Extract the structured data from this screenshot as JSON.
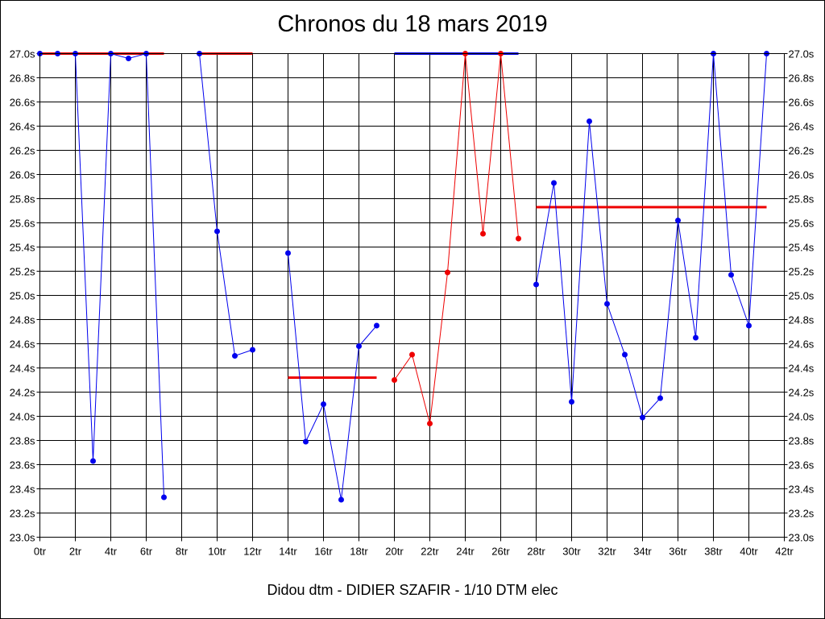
{
  "chart_data": {
    "type": "line",
    "title": "Chronos du 18 mars 2019",
    "footer": "Didou dtm - DIDIER SZAFIR - 1/10 DTM elec",
    "xlim": [
      0,
      42
    ],
    "ylim": [
      23.0,
      27.0
    ],
    "x_ticks": [
      "0tr",
      "2tr",
      "4tr",
      "6tr",
      "8tr",
      "10tr",
      "12tr",
      "14tr",
      "16tr",
      "18tr",
      "20tr",
      "22tr",
      "24tr",
      "26tr",
      "28tr",
      "30tr",
      "32tr",
      "34tr",
      "36tr",
      "38tr",
      "40tr",
      "42tr"
    ],
    "y_ticks": [
      "23.0s",
      "23.2s",
      "23.4s",
      "23.6s",
      "23.8s",
      "24.0s",
      "24.2s",
      "24.4s",
      "24.6s",
      "24.8s",
      "25.0s",
      "25.2s",
      "25.4s",
      "25.6s",
      "25.8s",
      "26.0s",
      "26.2s",
      "26.4s",
      "26.6s",
      "26.8s",
      "27.0s"
    ],
    "grid": true,
    "series": [
      {
        "color": "#0000ee",
        "x": [
          0,
          1,
          2,
          3,
          4,
          5,
          6,
          7
        ],
        "y": [
          27.0,
          27.0,
          27.0,
          23.63,
          27.0,
          26.96,
          27.0,
          23.33
        ]
      },
      {
        "color": "#0000ee",
        "x": [
          9,
          10,
          11,
          12
        ],
        "y": [
          27.0,
          25.53,
          24.5,
          24.55
        ]
      },
      {
        "color": "#0000ee",
        "x": [
          14,
          15,
          16,
          17,
          18,
          19
        ],
        "y": [
          25.35,
          23.79,
          24.1,
          23.31,
          24.58,
          24.75
        ]
      },
      {
        "color": "#ee0000",
        "x": [
          20,
          21,
          22,
          23,
          24,
          25,
          26,
          27
        ],
        "y": [
          24.3,
          24.51,
          23.94,
          25.19,
          27.0,
          25.51,
          27.0,
          25.47
        ]
      },
      {
        "color": "#0000ee",
        "x": [
          28,
          29,
          30,
          31,
          32,
          33,
          34,
          35,
          36,
          37,
          38,
          39,
          40,
          41
        ],
        "y": [
          25.09,
          25.93,
          24.12,
          26.44,
          24.93,
          24.51,
          23.99,
          24.15,
          25.62,
          24.65,
          27.0,
          25.17,
          24.75,
          27.0
        ]
      }
    ],
    "reference_lines": [
      {
        "color": "#ee0000",
        "x": [
          0,
          7
        ],
        "y": 27.0
      },
      {
        "color": "#ee0000",
        "x": [
          9,
          12
        ],
        "y": 27.0
      },
      {
        "color": "#ee0000",
        "x": [
          14,
          19
        ],
        "y": 24.32
      },
      {
        "color": "#0000ee",
        "x": [
          20,
          27
        ],
        "y": 27.0
      },
      {
        "color": "#ee0000",
        "x": [
          28,
          41
        ],
        "y": 25.73
      }
    ]
  }
}
